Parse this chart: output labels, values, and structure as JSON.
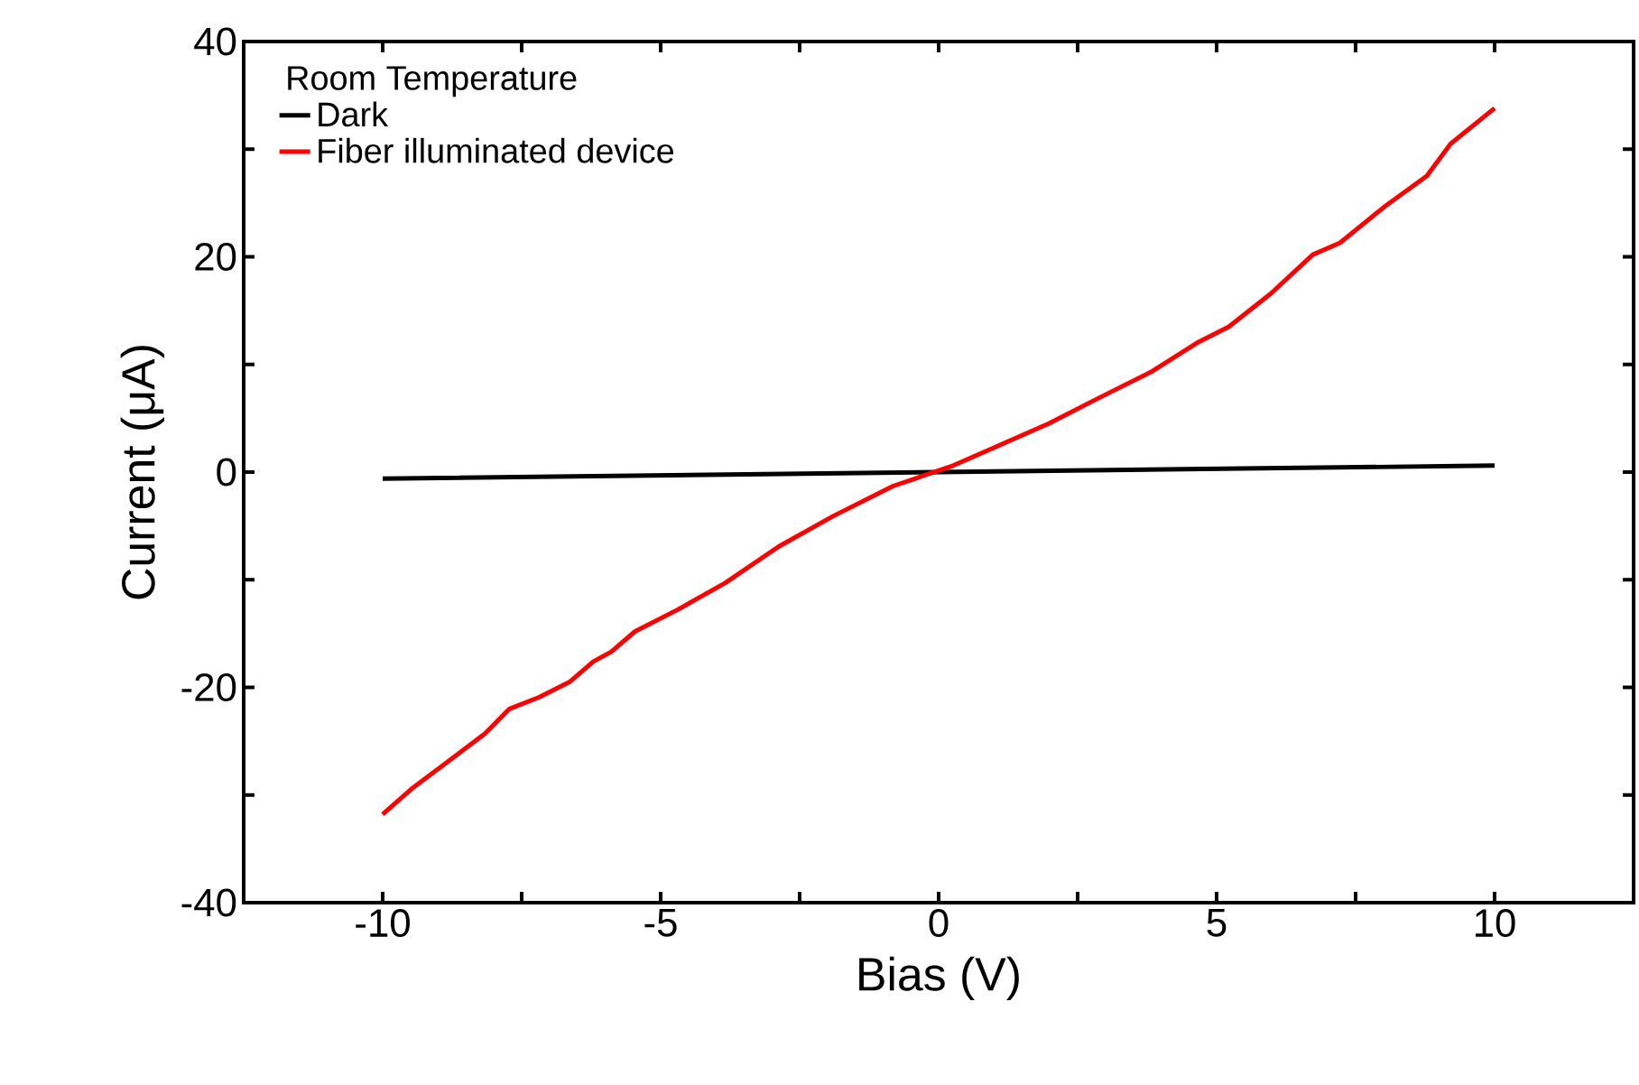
{
  "chart_data": {
    "type": "line",
    "xlabel": "Bias (V)",
    "ylabel": "Current (μA)",
    "legend_title": "Room Temperature",
    "legend": "top left",
    "grid": false,
    "marker": "none",
    "line_style": "solid",
    "xlim": [
      -12.5,
      12.5
    ],
    "ylim": [
      -40,
      40
    ],
    "xticks": [
      {
        "value": -10,
        "label": "-10"
      },
      {
        "value": -7.5,
        "label": null
      },
      {
        "value": -5,
        "label": "-5"
      },
      {
        "value": -2.5,
        "label": null
      },
      0,
      {
        "value": 2.5,
        "label": null
      },
      5,
      {
        "value": 7.5,
        "label": null
      },
      10
    ],
    "yticks": [
      {
        "value": -40,
        "label": "-40"
      },
      {
        "value": -30,
        "label": null
      },
      {
        "value": -20,
        "label": "-20"
      },
      {
        "value": -10,
        "label": null
      },
      0,
      {
        "value": 10,
        "label": null
      },
      20,
      {
        "value": 30,
        "label": null
      },
      40
    ],
    "series": [
      {
        "name": "Dark",
        "color": "#000000",
        "x": [
          -10,
          0,
          10
        ],
        "values": [
          -0.6,
          0,
          0.6
        ]
      },
      {
        "name": "Fiber illuminated device",
        "color": "#ff0000",
        "x": [
          -10,
          -9.45,
          -8.8,
          -8.16,
          -7.72,
          -7.18,
          -6.64,
          -6.21,
          -5.89,
          -5.46,
          -4.7,
          -3.84,
          -2.87,
          -1.9,
          -0.82,
          0.26,
          1.98,
          2.85,
          3.82,
          4.68,
          5.22,
          5.98,
          6.73,
          7.22,
          8.03,
          8.78,
          9.21,
          10
        ],
        "values": [
          -31.8,
          -29.3,
          -26.8,
          -24.3,
          -22.0,
          -20.9,
          -19.5,
          -17.6,
          -16.7,
          -14.8,
          -12.8,
          -10.3,
          -6.9,
          -4.1,
          -1.3,
          0.6,
          4.5,
          6.8,
          9.3,
          12.1,
          13.5,
          16.6,
          20.2,
          21.3,
          24.7,
          27.5,
          30.5,
          33.8
        ]
      }
    ]
  }
}
